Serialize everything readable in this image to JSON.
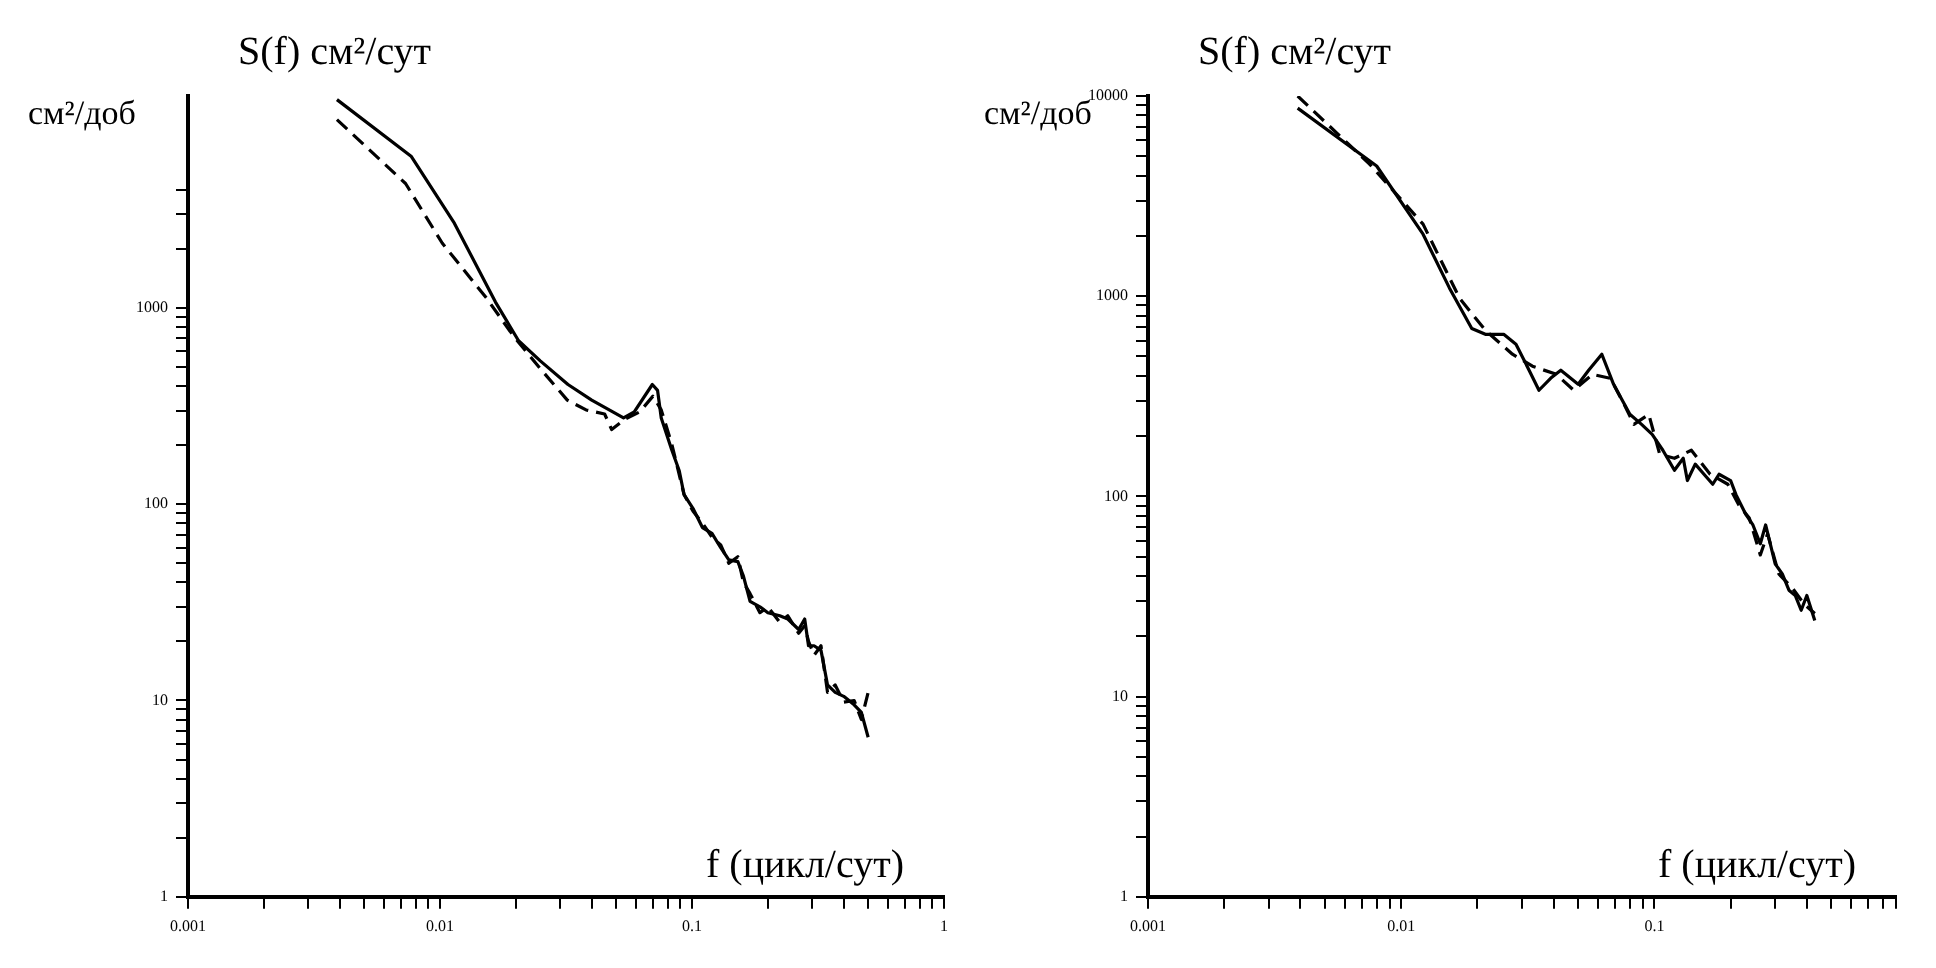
{
  "chart_data": [
    {
      "type": "line",
      "title": "S(f) см²/сут",
      "ylabel": "см²/доб",
      "xlabel": "f (цикл/сут)",
      "log": "xy",
      "marker": "none",
      "xlim": [
        0.001,
        1
      ],
      "ylim": [
        1,
        12000
      ],
      "xticks": [
        0.001,
        {
          "value": 0.002,
          "label": null
        },
        {
          "value": 0.003,
          "label": null
        },
        {
          "value": 0.004,
          "label": null
        },
        {
          "value": 0.005,
          "label": null
        },
        {
          "value": 0.006,
          "label": null
        },
        {
          "value": 0.007,
          "label": null
        },
        {
          "value": 0.008,
          "label": null
        },
        {
          "value": 0.009,
          "label": null
        },
        0.01,
        {
          "value": 0.02,
          "label": null
        },
        {
          "value": 0.03,
          "label": null
        },
        {
          "value": 0.04,
          "label": null
        },
        {
          "value": 0.05,
          "label": null
        },
        {
          "value": 0.06,
          "label": null
        },
        {
          "value": 0.07,
          "label": null
        },
        {
          "value": 0.08,
          "label": null
        },
        {
          "value": 0.09,
          "label": null
        },
        0.1,
        {
          "value": 0.2,
          "label": null
        },
        {
          "value": 0.3,
          "label": null
        },
        {
          "value": 0.4,
          "label": null
        },
        {
          "value": 0.5,
          "label": null
        },
        {
          "value": 0.6,
          "label": null
        },
        {
          "value": 0.7,
          "label": null
        },
        {
          "value": 0.8,
          "label": null
        },
        {
          "value": 0.9,
          "label": null
        },
        1
      ],
      "yticks": [
        1,
        {
          "value": 2,
          "label": null
        },
        {
          "value": 3,
          "label": null
        },
        {
          "value": 4,
          "label": null
        },
        {
          "value": 5,
          "label": null
        },
        {
          "value": 6,
          "label": null
        },
        {
          "value": 7,
          "label": null
        },
        {
          "value": 8,
          "label": null
        },
        {
          "value": 9,
          "label": null
        },
        10,
        {
          "value": 20,
          "label": null
        },
        {
          "value": 30,
          "label": null
        },
        {
          "value": 40,
          "label": null
        },
        {
          "value": 50,
          "label": null
        },
        {
          "value": 60,
          "label": null
        },
        {
          "value": 70,
          "label": null
        },
        {
          "value": 80,
          "label": null
        },
        {
          "value": 90,
          "label": null
        },
        100,
        {
          "value": 200,
          "label": null
        },
        {
          "value": 300,
          "label": null
        },
        {
          "value": 400,
          "label": null
        },
        {
          "value": 500,
          "label": null
        },
        {
          "value": 600,
          "label": null
        },
        {
          "value": 700,
          "label": null
        },
        {
          "value": 800,
          "label": null
        },
        {
          "value": 900,
          "label": null
        },
        1000,
        {
          "value": 2000,
          "label": null
        },
        {
          "value": 3000,
          "label": null
        },
        {
          "value": 4000,
          "label": null
        }
      ],
      "series": [
        {
          "color": "#000000",
          "line_style": "solid",
          "x": [
            0.0039,
            0.0077,
            0.0114,
            0.0166,
            0.0205,
            0.025,
            0.0322,
            0.04,
            0.0535,
            0.059,
            0.0696,
            0.073,
            0.0755,
            0.083,
            0.089,
            0.093,
            0.101,
            0.11,
            0.12,
            0.13,
            0.14,
            0.152,
            0.16,
            0.17,
            0.186,
            0.2,
            0.223,
            0.24,
            0.265,
            0.28,
            0.29,
            0.305,
            0.325,
            0.345,
            0.37,
            0.4,
            0.44,
            0.47,
            0.5
          ],
          "values": [
            11500,
            5900,
            2700,
            1070,
            680,
            537,
            407,
            339,
            275,
            295,
            407,
            380,
            275,
            190,
            148,
            112,
            95,
            76,
            71,
            60,
            52,
            51,
            43,
            32,
            30,
            28,
            27,
            26,
            23,
            26,
            19,
            19,
            18,
            12,
            11,
            10.5,
            9.5,
            8.7,
            6.5
          ]
        },
        {
          "color": "#000000",
          "line_style": "dashed",
          "x": [
            0.0039,
            0.0073,
            0.0102,
            0.0153,
            0.0197,
            0.025,
            0.032,
            0.038,
            0.045,
            0.048,
            0.054,
            0.062,
            0.07,
            0.0755,
            0.083,
            0.093,
            0.101,
            0.11,
            0.12,
            0.13,
            0.14,
            0.152,
            0.16,
            0.17,
            0.186,
            0.2,
            0.223,
            0.24,
            0.265,
            0.28,
            0.29,
            0.305,
            0.325,
            0.345,
            0.37,
            0.4,
            0.44,
            0.47,
            0.5
          ],
          "values": [
            9100,
            4300,
            2140,
            1120,
            710,
            490,
            339,
            302,
            288,
            240,
            270,
            295,
            355,
            302,
            204,
            112,
            92,
            80,
            68,
            62,
            50,
            54,
            40,
            35,
            28,
            30,
            25,
            27,
            22,
            24,
            20,
            17,
            19,
            11,
            12,
            9.8,
            10,
            8,
            11
          ]
        }
      ]
    },
    {
      "type": "line",
      "title": "S(f) см²/сут",
      "ylabel": "см²/доб",
      "xlabel": "f (цикл/сут)",
      "log": "xy",
      "marker": "none",
      "xlim": [
        0.001,
        0.9
      ],
      "ylim": [
        1,
        10000
      ],
      "xticks": [
        0.001,
        {
          "value": 0.002,
          "label": null
        },
        {
          "value": 0.003,
          "label": null
        },
        {
          "value": 0.004,
          "label": null
        },
        {
          "value": 0.005,
          "label": null
        },
        {
          "value": 0.006,
          "label": null
        },
        {
          "value": 0.007,
          "label": null
        },
        {
          "value": 0.008,
          "label": null
        },
        {
          "value": 0.009,
          "label": null
        },
        0.01,
        {
          "value": 0.02,
          "label": null
        },
        {
          "value": 0.03,
          "label": null
        },
        {
          "value": 0.04,
          "label": null
        },
        {
          "value": 0.05,
          "label": null
        },
        {
          "value": 0.06,
          "label": null
        },
        {
          "value": 0.07,
          "label": null
        },
        {
          "value": 0.08,
          "label": null
        },
        {
          "value": 0.09,
          "label": null
        },
        0.1,
        {
          "value": 0.2,
          "label": null
        },
        {
          "value": 0.3,
          "label": null
        },
        {
          "value": 0.4,
          "label": null
        },
        {
          "value": 0.5,
          "label": null
        },
        {
          "value": 0.6,
          "label": null
        },
        {
          "value": 0.7,
          "label": null
        },
        {
          "value": 0.8,
          "label": null
        },
        {
          "value": 0.9,
          "label": null
        }
      ],
      "yticks": [
        1,
        {
          "value": 2,
          "label": null
        },
        {
          "value": 3,
          "label": null
        },
        {
          "value": 4,
          "label": null
        },
        {
          "value": 5,
          "label": null
        },
        {
          "value": 6,
          "label": null
        },
        {
          "value": 7,
          "label": null
        },
        {
          "value": 8,
          "label": null
        },
        {
          "value": 9,
          "label": null
        },
        10,
        {
          "value": 20,
          "label": null
        },
        {
          "value": 30,
          "label": null
        },
        {
          "value": 40,
          "label": null
        },
        {
          "value": 50,
          "label": null
        },
        {
          "value": 60,
          "label": null
        },
        {
          "value": 70,
          "label": null
        },
        {
          "value": 80,
          "label": null
        },
        {
          "value": 90,
          "label": null
        },
        100,
        {
          "value": 200,
          "label": null
        },
        {
          "value": 300,
          "label": null
        },
        {
          "value": 400,
          "label": null
        },
        {
          "value": 500,
          "label": null
        },
        {
          "value": 600,
          "label": null
        },
        {
          "value": 700,
          "label": null
        },
        {
          "value": 800,
          "label": null
        },
        {
          "value": 900,
          "label": null
        },
        1000,
        {
          "value": 2000,
          "label": null
        },
        {
          "value": 3000,
          "label": null
        },
        {
          "value": 4000,
          "label": null
        },
        {
          "value": 5000,
          "label": null
        },
        {
          "value": 6000,
          "label": null
        },
        {
          "value": 7000,
          "label": null
        },
        {
          "value": 8000,
          "label": null
        },
        {
          "value": 9000,
          "label": null
        },
        10000
      ],
      "series": [
        {
          "color": "#000000",
          "line_style": "solid",
          "x": [
            0.0039,
            0.008,
            0.0122,
            0.0155,
            0.019,
            0.0215,
            0.0254,
            0.0284,
            0.032,
            0.035,
            0.039,
            0.0427,
            0.05,
            0.055,
            0.062,
            0.069,
            0.08,
            0.089,
            0.098,
            0.108,
            0.12,
            0.13,
            0.135,
            0.145,
            0.157,
            0.17,
            0.18,
            0.2,
            0.21,
            0.23,
            0.245,
            0.262,
            0.275,
            0.3,
            0.32,
            0.34,
            0.36,
            0.38,
            0.4,
            0.43
          ],
          "values": [
            8700,
            4470,
            2040,
            1100,
            690,
            645,
            645,
            575,
            427,
            339,
            390,
            427,
            363,
            427,
            513,
            363,
            257,
            229,
            204,
            170,
            135,
            155,
            120,
            145,
            129,
            115,
            129,
            120,
            102,
            81,
            72,
            58,
            72,
            46,
            41,
            34,
            32,
            27,
            32,
            24
          ]
        },
        {
          "color": "#000000",
          "line_style": "dashed",
          "x": [
            0.0039,
            0.0075,
            0.0122,
            0.017,
            0.0215,
            0.0275,
            0.033,
            0.041,
            0.048,
            0.057,
            0.067,
            0.076,
            0.083,
            0.095,
            0.105,
            0.12,
            0.14,
            0.166,
            0.195,
            0.215,
            0.237,
            0.262,
            0.28,
            0.31,
            0.35,
            0.39,
            0.43
          ],
          "values": [
            10000,
            4570,
            2290,
            977,
            676,
            513,
            447,
            407,
            339,
            407,
            389,
            288,
            229,
            257,
            162,
            155,
            170,
            129,
            115,
            91,
            78,
            51,
            65,
            41,
            35,
            29,
            26
          ]
        }
      ]
    }
  ]
}
